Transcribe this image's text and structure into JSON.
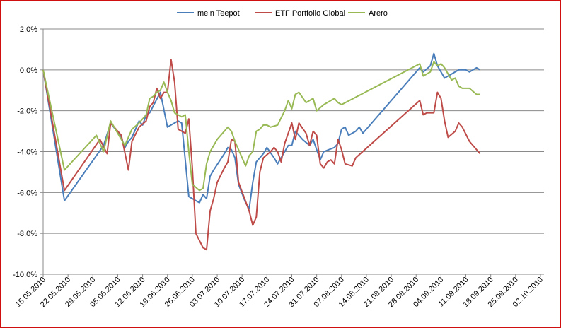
{
  "chart_data": {
    "type": "line",
    "title": "",
    "xlabel": "",
    "ylabel": "",
    "ylim": [
      -10,
      2
    ],
    "y_ticks": [
      {
        "value": 2,
        "label": "2,0%"
      },
      {
        "value": 0,
        "label": "0,0%"
      },
      {
        "value": -2,
        "label": "-2,0%"
      },
      {
        "value": -4,
        "label": "-4,0%"
      },
      {
        "value": -6,
        "label": "-6,0%"
      },
      {
        "value": -8,
        "label": "-8,0%"
      },
      {
        "value": -10,
        "label": "-10,0%"
      }
    ],
    "x_range_days": [
      0,
      141
    ],
    "x_ticks": [
      {
        "day": 0,
        "label": "15.05.2010"
      },
      {
        "day": 7,
        "label": "22.05.2010"
      },
      {
        "day": 14,
        "label": "29.05.2010"
      },
      {
        "day": 21,
        "label": "05.06.2010"
      },
      {
        "day": 28,
        "label": "12.06.2010"
      },
      {
        "day": 35,
        "label": "19.06.2010"
      },
      {
        "day": 42,
        "label": "26.06.2010"
      },
      {
        "day": 49,
        "label": "03.07.2010"
      },
      {
        "day": 56,
        "label": "10.07.2010"
      },
      {
        "day": 63,
        "label": "17.07.2010"
      },
      {
        "day": 70,
        "label": "24.07.2010"
      },
      {
        "day": 77,
        "label": "31.07.2010"
      },
      {
        "day": 84,
        "label": "07.08.2010"
      },
      {
        "day": 91,
        "label": "14.08.2010"
      },
      {
        "day": 98,
        "label": "21.08.2010"
      },
      {
        "day": 105,
        "label": "28.08.2010"
      },
      {
        "day": 112,
        "label": "04.09.2010"
      },
      {
        "day": 119,
        "label": "11.09.2010"
      },
      {
        "day": 126,
        "label": "18.09.2010"
      },
      {
        "day": 133,
        "label": "25.09.2010"
      },
      {
        "day": 140,
        "label": "02.10.2010"
      }
    ],
    "grid": "horizontal",
    "legend_position": "top",
    "series": [
      {
        "name": "mein Teepot",
        "color": "#4a7ebb",
        "points": [
          [
            0,
            0
          ],
          [
            6,
            -6.4
          ],
          [
            17,
            -3.7
          ],
          [
            19,
            -2.6
          ],
          [
            22,
            -3.3
          ],
          [
            23,
            -3.8
          ],
          [
            24,
            -3.5
          ],
          [
            25,
            -3.3
          ],
          [
            26,
            -2.9
          ],
          [
            27,
            -2.5
          ],
          [
            28,
            -2.7
          ],
          [
            29,
            -2.2
          ],
          [
            30,
            -2.1
          ],
          [
            33,
            -1.1
          ],
          [
            35,
            -2.8
          ],
          [
            38,
            -2.5
          ],
          [
            39,
            -2.6
          ],
          [
            41,
            -6.2
          ],
          [
            44,
            -6.5
          ],
          [
            45,
            -6.1
          ],
          [
            46,
            -6.3
          ],
          [
            47,
            -5.2
          ],
          [
            48,
            -4.9
          ],
          [
            51,
            -4.1
          ],
          [
            52,
            -3.8
          ],
          [
            53,
            -3.9
          ],
          [
            54,
            -4.3
          ],
          [
            55,
            -5.6
          ],
          [
            57,
            -6.5
          ],
          [
            58,
            -6.8
          ],
          [
            59,
            -5.5
          ],
          [
            60,
            -4.5
          ],
          [
            62,
            -4.1
          ],
          [
            63,
            -3.8
          ],
          [
            65,
            -4.3
          ],
          [
            66,
            -4.6
          ],
          [
            69,
            -3.7
          ],
          [
            70,
            -3.7
          ],
          [
            71,
            -3.0
          ],
          [
            73,
            -3.4
          ],
          [
            75,
            -3.7
          ],
          [
            76,
            -3.4
          ],
          [
            78,
            -4.4
          ],
          [
            79,
            -4.0
          ],
          [
            82,
            -3.8
          ],
          [
            83,
            -3.6
          ],
          [
            84,
            -2.9
          ],
          [
            85,
            -2.8
          ],
          [
            86,
            -3.2
          ],
          [
            88,
            -3.0
          ],
          [
            89,
            -2.8
          ],
          [
            90,
            -3.1
          ],
          [
            106,
            0.1
          ],
          [
            107,
            -0.1
          ],
          [
            109,
            0.2
          ],
          [
            110,
            0.8
          ],
          [
            111,
            0.2
          ],
          [
            113,
            -0.4
          ],
          [
            115,
            -0.2
          ],
          [
            117,
            0
          ],
          [
            119,
            0
          ],
          [
            120,
            -0.1
          ],
          [
            122,
            0.1
          ],
          [
            123,
            0
          ]
        ]
      },
      {
        "name": "ETF Portfolio Global",
        "color": "#be4b48",
        "points": [
          [
            0,
            0
          ],
          [
            6,
            -5.9
          ],
          [
            16,
            -3.4
          ],
          [
            18,
            -4.1
          ],
          [
            19,
            -2.6
          ],
          [
            22,
            -3.2
          ],
          [
            24,
            -4.9
          ],
          [
            25,
            -3.5
          ],
          [
            27,
            -2.8
          ],
          [
            29,
            -2.5
          ],
          [
            30,
            -1.8
          ],
          [
            31,
            -1.6
          ],
          [
            32,
            -0.9
          ],
          [
            33,
            -1.4
          ],
          [
            34,
            -1.1
          ],
          [
            35,
            -1.1
          ],
          [
            36,
            0.5
          ],
          [
            37,
            -0.6
          ],
          [
            38,
            -2.9
          ],
          [
            40,
            -3.1
          ],
          [
            41,
            -2.4
          ],
          [
            42,
            -4.8
          ],
          [
            43,
            -8.0
          ],
          [
            45,
            -8.7
          ],
          [
            46,
            -8.8
          ],
          [
            47,
            -6.9
          ],
          [
            48,
            -6.3
          ],
          [
            49,
            -5.5
          ],
          [
            51,
            -4.8
          ],
          [
            52,
            -4.5
          ],
          [
            53,
            -3.4
          ],
          [
            54,
            -3.5
          ],
          [
            55,
            -5.5
          ],
          [
            58,
            -6.9
          ],
          [
            59,
            -7.6
          ],
          [
            60,
            -7.2
          ],
          [
            61,
            -5.0
          ],
          [
            62,
            -4.3
          ],
          [
            64,
            -4.0
          ],
          [
            65,
            -3.8
          ],
          [
            66,
            -4.0
          ],
          [
            67,
            -4.5
          ],
          [
            68,
            -3.6
          ],
          [
            70,
            -2.6
          ],
          [
            71,
            -3.4
          ],
          [
            72,
            -2.6
          ],
          [
            74,
            -3.1
          ],
          [
            75,
            -3.7
          ],
          [
            76,
            -3.0
          ],
          [
            77,
            -3.2
          ],
          [
            78,
            -4.6
          ],
          [
            79,
            -4.8
          ],
          [
            80,
            -4.5
          ],
          [
            81,
            -4.4
          ],
          [
            82,
            -4.6
          ],
          [
            83,
            -3.4
          ],
          [
            84,
            -3.9
          ],
          [
            85,
            -4.6
          ],
          [
            87,
            -4.7
          ],
          [
            88,
            -4.3
          ],
          [
            106,
            -1.5
          ],
          [
            107,
            -2.2
          ],
          [
            108,
            -2.1
          ],
          [
            110,
            -2.1
          ],
          [
            111,
            -1.1
          ],
          [
            112,
            -1.4
          ],
          [
            113,
            -2.5
          ],
          [
            114,
            -3.3
          ],
          [
            116,
            -3.0
          ],
          [
            117,
            -2.6
          ],
          [
            118,
            -2.8
          ],
          [
            120,
            -3.5
          ],
          [
            122,
            -3.9
          ],
          [
            123,
            -4.1
          ]
        ]
      },
      {
        "name": "Arero",
        "color": "#98b954",
        "points": [
          [
            0,
            0
          ],
          [
            6,
            -4.9
          ],
          [
            15,
            -3.2
          ],
          [
            17,
            -4.0
          ],
          [
            19,
            -2.5
          ],
          [
            21,
            -3.1
          ],
          [
            23,
            -3.7
          ],
          [
            25,
            -2.9
          ],
          [
            27,
            -2.6
          ],
          [
            29,
            -2.2
          ],
          [
            30,
            -1.4
          ],
          [
            31,
            -1.3
          ],
          [
            32,
            -1.1
          ],
          [
            33,
            -1.0
          ],
          [
            34,
            -0.6
          ],
          [
            35,
            -1.1
          ],
          [
            36,
            -1.5
          ],
          [
            37,
            -2.1
          ],
          [
            39,
            -2.3
          ],
          [
            40,
            -2.2
          ],
          [
            41,
            -4.0
          ],
          [
            42,
            -5.6
          ],
          [
            44,
            -5.9
          ],
          [
            45,
            -5.8
          ],
          [
            46,
            -4.6
          ],
          [
            47,
            -4.0
          ],
          [
            49,
            -3.4
          ],
          [
            51,
            -3.0
          ],
          [
            52,
            -2.8
          ],
          [
            53,
            -3.0
          ],
          [
            54,
            -3.5
          ],
          [
            57,
            -4.7
          ],
          [
            58,
            -4.2
          ],
          [
            59,
            -4.0
          ],
          [
            60,
            -3.0
          ],
          [
            61,
            -2.9
          ],
          [
            62,
            -2.7
          ],
          [
            63,
            -2.7
          ],
          [
            64,
            -2.8
          ],
          [
            66,
            -2.7
          ],
          [
            68,
            -2.0
          ],
          [
            69,
            -1.5
          ],
          [
            70,
            -1.9
          ],
          [
            71,
            -1.2
          ],
          [
            72,
            -1.1
          ],
          [
            74,
            -1.6
          ],
          [
            76,
            -1.4
          ],
          [
            77,
            -2.0
          ],
          [
            79,
            -1.7
          ],
          [
            80,
            -1.6
          ],
          [
            82,
            -1.4
          ],
          [
            83,
            -1.6
          ],
          [
            84,
            -1.7
          ],
          [
            106,
            0.3
          ],
          [
            107,
            -0.3
          ],
          [
            109,
            -0.1
          ],
          [
            110,
            0.4
          ],
          [
            111,
            0.2
          ],
          [
            112,
            0.3
          ],
          [
            113,
            0.1
          ],
          [
            114,
            -0.2
          ],
          [
            115,
            -0.5
          ],
          [
            116,
            -0.4
          ],
          [
            117,
            -0.8
          ],
          [
            118,
            -0.9
          ],
          [
            120,
            -0.9
          ],
          [
            122,
            -1.2
          ],
          [
            123,
            -1.2
          ]
        ]
      }
    ]
  }
}
